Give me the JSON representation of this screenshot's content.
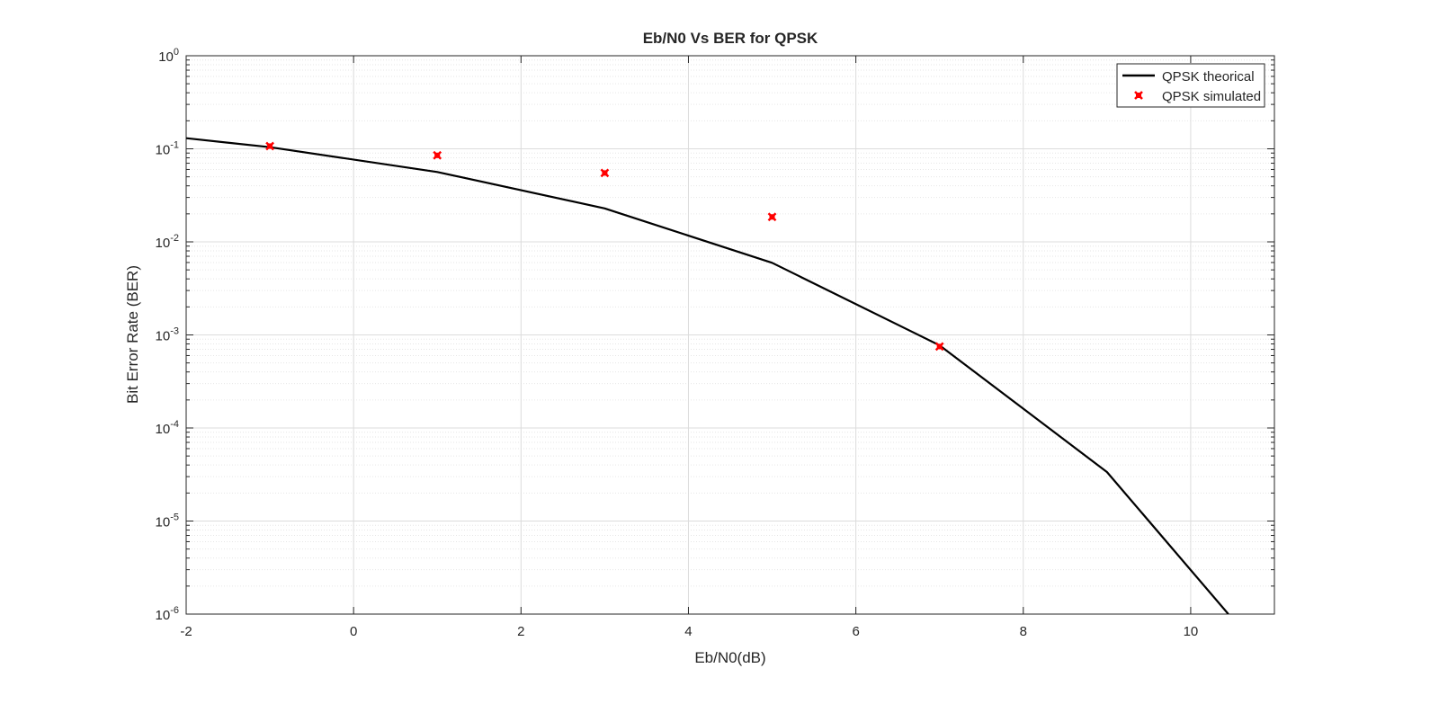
{
  "chart_data": {
    "type": "line",
    "title": "Eb/N0 Vs BER for QPSK",
    "xlabel": "Eb/N0(dB)",
    "ylabel": "Bit Error Rate (BER)",
    "xlim": [
      -2,
      11
    ],
    "ylim": [
      1e-06,
      1
    ],
    "y_scale": "log",
    "grid": true,
    "minor_grid": true,
    "legend_position": "top-right",
    "x_ticks": [
      -2,
      0,
      2,
      4,
      6,
      8,
      10
    ],
    "x_tick_labels": [
      "-2",
      "0",
      "2",
      "4",
      "6",
      "8",
      "10"
    ],
    "y_ticks": [
      {
        "value": 1e-06,
        "base": "10",
        "exp": "-6"
      },
      {
        "value": 1e-05,
        "base": "10",
        "exp": "-5"
      },
      {
        "value": 0.0001,
        "base": "10",
        "exp": "-4"
      },
      {
        "value": 0.001,
        "base": "10",
        "exp": "-3"
      },
      {
        "value": 0.01,
        "base": "10",
        "exp": "-2"
      },
      {
        "value": 0.1,
        "base": "10",
        "exp": "-1"
      },
      {
        "value": 1,
        "base": "10",
        "exp": "0"
      }
    ],
    "series": [
      {
        "name": "QPSK theorical",
        "style": "line",
        "color": "#000000",
        "x": [
          -2,
          -1,
          1,
          3,
          5,
          7,
          9,
          10.45
        ],
        "y": [
          0.13,
          0.104,
          0.0563,
          0.0229,
          0.00595,
          0.000773,
          3.36e-05,
          1e-06
        ]
      },
      {
        "name": "QPSK simulated",
        "style": "marker",
        "color": "#ff0000",
        "x": [
          -1,
          1,
          3,
          5,
          7
        ],
        "y": [
          0.107,
          0.085,
          0.055,
          0.0185,
          0.00075
        ]
      }
    ]
  }
}
